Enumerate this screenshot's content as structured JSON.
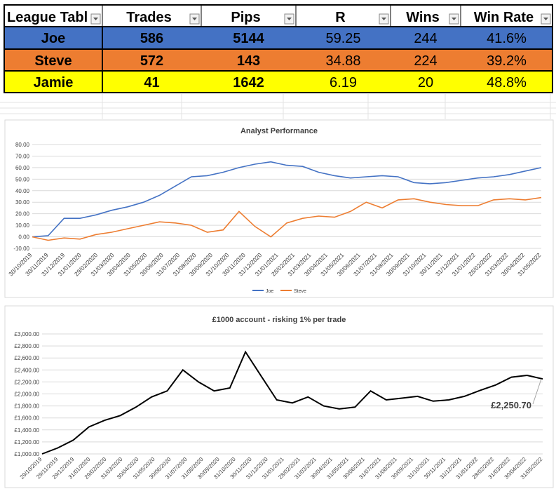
{
  "table": {
    "headers": [
      "League Tabl",
      "Trades",
      "Pips",
      "R",
      "Wins",
      "Win Rate"
    ],
    "rows": [
      {
        "name": "Joe",
        "trades": "586",
        "pips": "5144",
        "r": "59.25",
        "wins": "244",
        "win_rate": "41.6%",
        "color": "#4472c4"
      },
      {
        "name": "Steve",
        "trades": "572",
        "pips": "143",
        "r": "34.88",
        "wins": "224",
        "win_rate": "39.2%",
        "color": "#ed7d31"
      },
      {
        "name": "Jamie",
        "trades": "41",
        "pips": "1642",
        "r": "6.19",
        "wins": "20",
        "win_rate": "48.8%",
        "color": "#ffff00"
      }
    ]
  },
  "chart_data": [
    {
      "type": "line",
      "title": "Analyst Performance",
      "ylim": [
        -10,
        80
      ],
      "yticks": [
        "-10.00",
        "0.00",
        "10.00",
        "20.00",
        "30.00",
        "40.00",
        "50.00",
        "60.00",
        "70.00",
        "80.00"
      ],
      "xticks": [
        "30/10/2019",
        "30/11/2019",
        "31/12/2019",
        "31/01/2020",
        "29/02/2020",
        "31/03/2020",
        "30/04/2020",
        "31/05/2020",
        "30/06/2020",
        "31/07/2020",
        "31/08/2020",
        "30/09/2020",
        "31/10/2020",
        "30/11/2020",
        "31/12/2020",
        "31/01/2021",
        "28/02/2021",
        "31/03/2021",
        "30/04/2021",
        "31/05/2021",
        "30/06/2021",
        "31/07/2021",
        "31/08/2021",
        "30/09/2021",
        "31/10/2021",
        "30/11/2021",
        "31/12/2021",
        "31/01/2022",
        "28/02/2022",
        "31/03/2022",
        "30/04/2022",
        "31/05/2022"
      ],
      "legend": "bottom",
      "grid": true,
      "series": [
        {
          "name": "Joe",
          "color": "#4472c4",
          "values": [
            0,
            1,
            16,
            16,
            19,
            23,
            26,
            30,
            36,
            44,
            52,
            53,
            56,
            60,
            63,
            65,
            62,
            61,
            56,
            53,
            51,
            52,
            53,
            52,
            47,
            46,
            47,
            49,
            51,
            52,
            54,
            57,
            60
          ]
        },
        {
          "name": "Steve",
          "color": "#ed7d31",
          "values": [
            0,
            -3,
            -1,
            -2,
            2,
            4,
            7,
            10,
            13,
            12,
            10,
            4,
            6,
            22,
            9,
            0,
            12,
            16,
            18,
            17,
            22,
            30,
            25,
            32,
            33,
            30,
            28,
            27,
            27,
            32,
            33,
            32,
            34
          ]
        }
      ]
    },
    {
      "type": "line",
      "title": "£1000 account - risking 1% per trade",
      "ylim": [
        1000,
        3000
      ],
      "yticks": [
        "£1,000.00",
        "£1,200.00",
        "£1,400.00",
        "£1,600.00",
        "£1,800.00",
        "£2,000.00",
        "£2,200.00",
        "£2,400.00",
        "£2,600.00",
        "£2,800.00",
        "£3,000.00"
      ],
      "xticks": [
        "29/10/2019",
        "29/11/2019",
        "29/12/2019",
        "31/01/2020",
        "29/02/2020",
        "31/03/2020",
        "30/04/2020",
        "31/05/2020",
        "30/06/2020",
        "31/07/2020",
        "31/08/2020",
        "30/09/2020",
        "31/10/2020",
        "30/11/2020",
        "31/12/2020",
        "31/01/2021",
        "28/02/2021",
        "31/03/2021",
        "30/04/2021",
        "31/05/2021",
        "30/06/2021",
        "31/07/2021",
        "31/08/2021",
        "30/09/2021",
        "31/10/2021",
        "30/11/2021",
        "31/12/2021",
        "31/01/2022",
        "28/02/2022",
        "31/03/2022",
        "30/04/2022",
        "31/05/2022"
      ],
      "grid": true,
      "series": [
        {
          "color": "#000000",
          "values": [
            1000,
            1100,
            1230,
            1450,
            1560,
            1640,
            1780,
            1950,
            2050,
            2400,
            2200,
            2050,
            2100,
            2700,
            2300,
            1900,
            1850,
            1950,
            1800,
            1750,
            1780,
            2050,
            1900,
            1930,
            1960,
            1880,
            1900,
            1960,
            2060,
            2150,
            2280,
            2310,
            2250.7
          ]
        }
      ],
      "annotation": {
        "label": "£2,250.70",
        "value": 2250.7
      }
    }
  ]
}
